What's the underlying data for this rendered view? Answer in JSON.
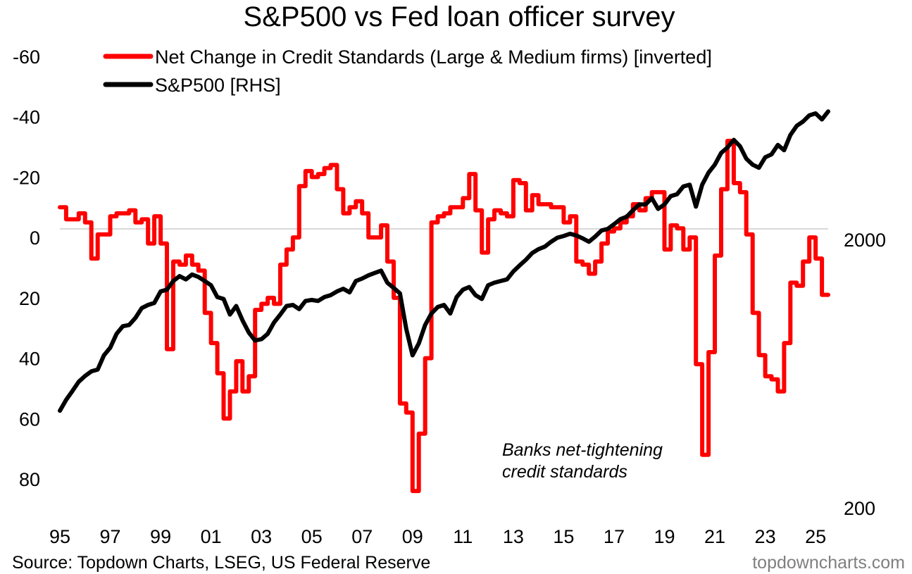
{
  "chart_data": {
    "type": "line",
    "title": "S&P500 vs Fed loan officer survey",
    "source": "Source: Topdown Charts, LSEG, US Federal Reserve",
    "watermark": "topdowncharts.com",
    "annotation": "Banks net-tightening credit standards",
    "annotation_lines": [
      "Banks net-tightening",
      "credit standards"
    ],
    "x_ticks": [
      "95",
      "97",
      "99",
      "01",
      "03",
      "05",
      "07",
      "09",
      "11",
      "13",
      "15",
      "17",
      "19",
      "21",
      "23",
      "25"
    ],
    "x_range": [
      1995,
      2025.5
    ],
    "y_left": {
      "ticks": [
        "-60",
        "-40",
        "-20",
        "0",
        "20",
        "40",
        "60",
        "80"
      ],
      "range": [
        -60,
        80
      ],
      "inverted": true
    },
    "y_right": {
      "ticks": [
        "2000",
        "200"
      ],
      "log_scale": true,
      "range_approx": [
        200,
        5800
      ]
    },
    "zero_gridline": true,
    "series": [
      {
        "name": "Net Change in Credit Standards (Large & Medium firms) [inverted]",
        "axis": "left",
        "color": "#ff0000",
        "step": true,
        "points": [
          [
            1995.0,
            -10
          ],
          [
            1995.25,
            -6
          ],
          [
            1995.5,
            -6
          ],
          [
            1995.75,
            -8
          ],
          [
            1996.0,
            -5
          ],
          [
            1996.25,
            7
          ],
          [
            1996.5,
            -1
          ],
          [
            1996.75,
            -1
          ],
          [
            1997.0,
            -7
          ],
          [
            1997.25,
            -8
          ],
          [
            1997.5,
            -8
          ],
          [
            1997.75,
            -9
          ],
          [
            1998.0,
            -5
          ],
          [
            1998.25,
            -6
          ],
          [
            1998.5,
            2
          ],
          [
            1998.75,
            -7
          ],
          [
            1999.0,
            2
          ],
          [
            1999.25,
            37
          ],
          [
            1999.5,
            8
          ],
          [
            1999.75,
            9
          ],
          [
            2000.0,
            6
          ],
          [
            2000.25,
            9
          ],
          [
            2000.5,
            11
          ],
          [
            2000.75,
            25
          ],
          [
            2001.0,
            35
          ],
          [
            2001.25,
            45
          ],
          [
            2001.5,
            60
          ],
          [
            2001.75,
            51
          ],
          [
            2002.0,
            41
          ],
          [
            2002.25,
            51
          ],
          [
            2002.5,
            46
          ],
          [
            2002.75,
            24
          ],
          [
            2003.0,
            22
          ],
          [
            2003.25,
            20
          ],
          [
            2003.5,
            22
          ],
          [
            2003.75,
            9
          ],
          [
            2004.0,
            4
          ],
          [
            2004.25,
            0
          ],
          [
            2004.5,
            -17
          ],
          [
            2004.75,
            -22
          ],
          [
            2005.0,
            -20
          ],
          [
            2005.25,
            -21
          ],
          [
            2005.5,
            -23
          ],
          [
            2005.75,
            -24
          ],
          [
            2006.0,
            -16
          ],
          [
            2006.25,
            -8
          ],
          [
            2006.5,
            -10
          ],
          [
            2006.75,
            -12
          ],
          [
            2007.0,
            -8
          ],
          [
            2007.25,
            0
          ],
          [
            2007.5,
            0
          ],
          [
            2007.75,
            -4
          ],
          [
            2008.0,
            8
          ],
          [
            2008.25,
            20
          ],
          [
            2008.5,
            55
          ],
          [
            2008.75,
            58
          ],
          [
            2009.0,
            84
          ],
          [
            2009.25,
            65
          ],
          [
            2009.5,
            40
          ],
          [
            2009.75,
            -5
          ],
          [
            2010.0,
            -7
          ],
          [
            2010.25,
            -8
          ],
          [
            2010.5,
            -10
          ],
          [
            2010.75,
            -10
          ],
          [
            2011.0,
            -13
          ],
          [
            2011.25,
            -21
          ],
          [
            2011.5,
            -9
          ],
          [
            2011.75,
            5
          ],
          [
            2012.0,
            -6
          ],
          [
            2012.25,
            -9
          ],
          [
            2012.5,
            -8
          ],
          [
            2012.75,
            -7
          ],
          [
            2013.0,
            -19
          ],
          [
            2013.25,
            -18
          ],
          [
            2013.5,
            -9
          ],
          [
            2013.75,
            -14
          ],
          [
            2014.0,
            -11
          ],
          [
            2014.25,
            -11
          ],
          [
            2014.5,
            -10
          ],
          [
            2014.75,
            -10
          ],
          [
            2015.0,
            -5
          ],
          [
            2015.25,
            -7
          ],
          [
            2015.5,
            8
          ],
          [
            2015.75,
            9
          ],
          [
            2016.0,
            12
          ],
          [
            2016.25,
            8
          ],
          [
            2016.5,
            2
          ],
          [
            2016.75,
            -2
          ],
          [
            2017.0,
            -3
          ],
          [
            2017.25,
            -5
          ],
          [
            2017.5,
            -7
          ],
          [
            2017.75,
            -11
          ],
          [
            2018.0,
            -9
          ],
          [
            2018.25,
            -13
          ],
          [
            2018.5,
            -15
          ],
          [
            2018.75,
            -15
          ],
          [
            2019.0,
            4
          ],
          [
            2019.25,
            -4
          ],
          [
            2019.5,
            -3
          ],
          [
            2019.75,
            4
          ],
          [
            2020.0,
            0
          ],
          [
            2020.25,
            42
          ],
          [
            2020.5,
            72
          ],
          [
            2020.75,
            38
          ],
          [
            2021.0,
            6
          ],
          [
            2021.25,
            -16
          ],
          [
            2021.5,
            -32
          ],
          [
            2021.75,
            -18
          ],
          [
            2022.0,
            -15
          ],
          [
            2022.25,
            -1
          ],
          [
            2022.5,
            25
          ],
          [
            2022.75,
            39
          ],
          [
            2023.0,
            46
          ],
          [
            2023.25,
            47
          ],
          [
            2023.5,
            51
          ],
          [
            2023.75,
            35
          ],
          [
            2024.0,
            15
          ],
          [
            2024.25,
            16
          ],
          [
            2024.5,
            8
          ],
          [
            2024.75,
            0
          ],
          [
            2025.0,
            7
          ],
          [
            2025.25,
            19
          ],
          [
            2025.5,
            19
          ]
        ]
      },
      {
        "name": "S&P500 [RHS]",
        "axis": "right",
        "color": "#000000",
        "step": false,
        "points": [
          [
            1995.0,
            460
          ],
          [
            1995.25,
            505
          ],
          [
            1995.5,
            545
          ],
          [
            1995.75,
            590
          ],
          [
            1996.0,
            620
          ],
          [
            1996.25,
            645
          ],
          [
            1996.5,
            655
          ],
          [
            1996.75,
            740
          ],
          [
            1997.0,
            790
          ],
          [
            1997.25,
            890
          ],
          [
            1997.5,
            950
          ],
          [
            1997.75,
            960
          ],
          [
            1998.0,
            1020
          ],
          [
            1998.25,
            1110
          ],
          [
            1998.5,
            1140
          ],
          [
            1998.75,
            1160
          ],
          [
            1999.0,
            1280
          ],
          [
            1999.25,
            1300
          ],
          [
            1999.5,
            1400
          ],
          [
            1999.75,
            1460
          ],
          [
            2000.0,
            1420
          ],
          [
            2000.25,
            1480
          ],
          [
            2000.5,
            1450
          ],
          [
            2000.75,
            1400
          ],
          [
            2001.0,
            1350
          ],
          [
            2001.25,
            1220
          ],
          [
            2001.5,
            1200
          ],
          [
            2001.75,
            1050
          ],
          [
            2002.0,
            1130
          ],
          [
            2002.25,
            1000
          ],
          [
            2002.5,
            900
          ],
          [
            2002.75,
            840
          ],
          [
            2003.0,
            850
          ],
          [
            2003.25,
            890
          ],
          [
            2003.5,
            980
          ],
          [
            2003.75,
            1050
          ],
          [
            2004.0,
            1130
          ],
          [
            2004.25,
            1140
          ],
          [
            2004.5,
            1100
          ],
          [
            2004.75,
            1180
          ],
          [
            2005.0,
            1190
          ],
          [
            2005.25,
            1180
          ],
          [
            2005.5,
            1220
          ],
          [
            2005.75,
            1240
          ],
          [
            2006.0,
            1280
          ],
          [
            2006.25,
            1310
          ],
          [
            2006.5,
            1270
          ],
          [
            2006.75,
            1400
          ],
          [
            2007.0,
            1430
          ],
          [
            2007.25,
            1470
          ],
          [
            2007.5,
            1500
          ],
          [
            2007.75,
            1530
          ],
          [
            2008.0,
            1380
          ],
          [
            2008.25,
            1320
          ],
          [
            2008.5,
            1260
          ],
          [
            2008.75,
            930
          ],
          [
            2009.0,
            740
          ],
          [
            2009.25,
            820
          ],
          [
            2009.5,
            960
          ],
          [
            2009.75,
            1060
          ],
          [
            2010.0,
            1120
          ],
          [
            2010.25,
            1140
          ],
          [
            2010.5,
            1060
          ],
          [
            2010.75,
            1220
          ],
          [
            2011.0,
            1300
          ],
          [
            2011.25,
            1330
          ],
          [
            2011.5,
            1240
          ],
          [
            2011.75,
            1200
          ],
          [
            2012.0,
            1350
          ],
          [
            2012.25,
            1380
          ],
          [
            2012.5,
            1400
          ],
          [
            2012.75,
            1420
          ],
          [
            2013.0,
            1520
          ],
          [
            2013.25,
            1600
          ],
          [
            2013.5,
            1680
          ],
          [
            2013.75,
            1780
          ],
          [
            2014.0,
            1840
          ],
          [
            2014.25,
            1880
          ],
          [
            2014.5,
            1960
          ],
          [
            2014.75,
            2030
          ],
          [
            2015.0,
            2060
          ],
          [
            2015.25,
            2100
          ],
          [
            2015.5,
            2070
          ],
          [
            2015.75,
            2020
          ],
          [
            2016.0,
            1960
          ],
          [
            2016.25,
            2050
          ],
          [
            2016.5,
            2160
          ],
          [
            2016.75,
            2190
          ],
          [
            2017.0,
            2280
          ],
          [
            2017.25,
            2380
          ],
          [
            2017.5,
            2430
          ],
          [
            2017.75,
            2570
          ],
          [
            2018.0,
            2700
          ],
          [
            2018.25,
            2700
          ],
          [
            2018.5,
            2850
          ],
          [
            2018.75,
            2600
          ],
          [
            2019.0,
            2700
          ],
          [
            2019.25,
            2900
          ],
          [
            2019.5,
            2950
          ],
          [
            2019.75,
            3150
          ],
          [
            2020.0,
            3200
          ],
          [
            2020.25,
            2650
          ],
          [
            2020.5,
            3200
          ],
          [
            2020.75,
            3550
          ],
          [
            2021.0,
            3800
          ],
          [
            2021.25,
            4200
          ],
          [
            2021.5,
            4400
          ],
          [
            2021.75,
            4700
          ],
          [
            2022.0,
            4450
          ],
          [
            2022.25,
            4000
          ],
          [
            2022.5,
            3800
          ],
          [
            2022.75,
            3700
          ],
          [
            2023.0,
            4050
          ],
          [
            2023.25,
            4150
          ],
          [
            2023.5,
            4500
          ],
          [
            2023.75,
            4300
          ],
          [
            2024.0,
            4900
          ],
          [
            2024.25,
            5300
          ],
          [
            2024.5,
            5500
          ],
          [
            2024.75,
            5800
          ],
          [
            2025.0,
            5900
          ],
          [
            2025.25,
            5600
          ],
          [
            2025.5,
            6000
          ]
        ]
      }
    ]
  }
}
